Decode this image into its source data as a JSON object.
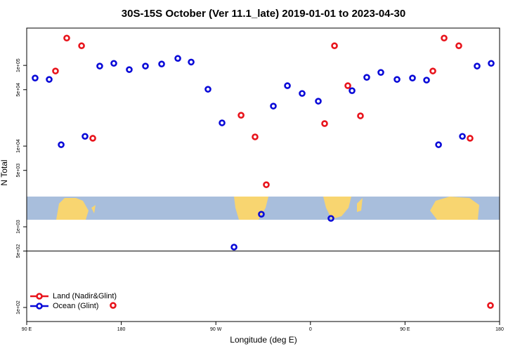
{
  "chart_data": {
    "type": "scatter",
    "title": "30S-15S October (Ver 11.1_late)   2019-01-01 to 2023-04-30",
    "x_label": "Longitude (deg E)",
    "y_label": "N Total",
    "xlim": [
      90,
      540
    ],
    "xticks": [
      {
        "value": 90,
        "label": "90 E"
      },
      {
        "value": 180,
        "label": "180"
      },
      {
        "value": 270,
        "label": "90 W"
      },
      {
        "value": 360,
        "label": "0"
      },
      {
        "value": 450,
        "label": "90 E"
      },
      {
        "value": 540,
        "label": "180"
      }
    ],
    "ylim": [
      67,
      290000
    ],
    "log_y": true,
    "yticks": [
      {
        "value": 100,
        "label": "1e+02"
      },
      {
        "value": 500,
        "label": "5e+02"
      },
      {
        "value": 1000,
        "label": "1e+03"
      },
      {
        "value": 5000,
        "label": "5e+03"
      },
      {
        "value": 10000,
        "label": "1e+04"
      },
      {
        "value": 50000,
        "label": "5e+04"
      },
      {
        "value": 100000,
        "label": "1e+05"
      }
    ],
    "hline": 500,
    "legend": "bottom left",
    "series": [
      {
        "name": "Land (Nadir&Glint)",
        "color": "#e8141c",
        "x": [
          117.4,
          128.1,
          142.2,
          152.9,
          172.2,
          294,
          307.3,
          318,
          373.5,
          382.9,
          395.6,
          407.6,
          476.5,
          487.2,
          501.2,
          511.9,
          531.3
        ],
        "values": [
          85200,
          218000,
          175000,
          12500,
          106,
          24100,
          13000,
          3320,
          19000,
          175000,
          56000,
          23700,
          85200,
          218000,
          175000,
          12500,
          106
        ]
      },
      {
        "name": "Ocean (Glint)",
        "color": "#0a0ad8",
        "x": [
          98,
          111.4,
          122.8,
          145.5,
          159.5,
          172.9,
          187.6,
          203,
          218.4,
          233.8,
          246.5,
          262.5,
          275.9,
          287.3,
          313.3,
          324.7,
          338.1,
          352.1,
          367.5,
          379.5,
          399.6,
          413.6,
          427,
          442.4,
          457.1,
          470.5,
          481.9,
          504.6,
          518.6,
          532
        ],
        "values": [
          69700,
          67000,
          10400,
          13200,
          98000,
          106000,
          88700,
          98000,
          104000,
          122000,
          110000,
          50600,
          19400,
          560,
          1430,
          31300,
          56000,
          44900,
          36000,
          1270,
          48600,
          71100,
          81800,
          67000,
          69700,
          65700,
          10400,
          13200,
          98000,
          106000
        ]
      }
    ]
  }
}
